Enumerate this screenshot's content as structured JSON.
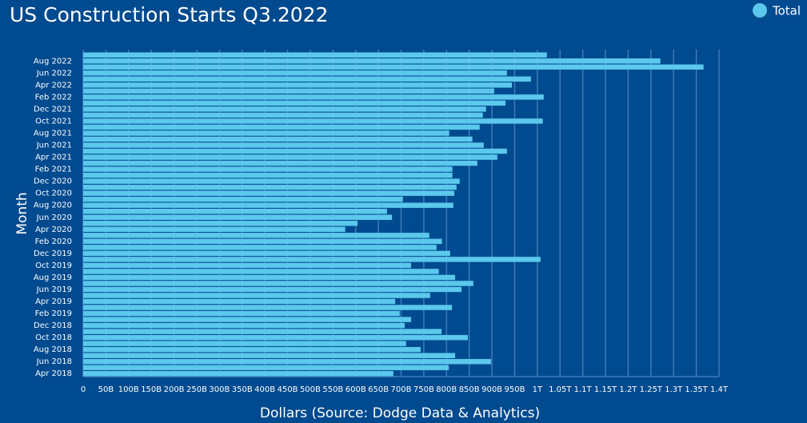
{
  "chart_data": {
    "type": "barh",
    "title": "US Construction Starts Q3.2022",
    "x_label": "Dollars (Source: Dodge Data & Analytics)",
    "y_label": "Month",
    "legend": "top-right",
    "grid": true,
    "categories": [
      "Apr 2018",
      null,
      "Jun 2018",
      null,
      "Aug 2018",
      null,
      "Oct 2018",
      null,
      "Dec 2018",
      null,
      "Feb 2019",
      null,
      "Apr 2019",
      null,
      "Jun 2019",
      null,
      "Aug 2019",
      null,
      "Oct 2019",
      null,
      "Dec 2019",
      null,
      "Feb 2020",
      null,
      "Apr 2020",
      null,
      "Jun 2020",
      null,
      "Aug 2020",
      null,
      "Oct 2020",
      null,
      "Dec 2020",
      null,
      "Feb 2021",
      null,
      "Apr 2021",
      null,
      "Jun 2021",
      null,
      "Aug 2021",
      null,
      "Oct 2021",
      null,
      "Dec 2021",
      null,
      "Feb 2022",
      null,
      "Apr 2022",
      null,
      "Jun 2022",
      null,
      "Aug 2022",
      null
    ],
    "series": [
      {
        "name": "Total",
        "color": "#5bc8ec",
        "values": [
          683000000000.0,
          805000000000.0,
          898000000000.0,
          819000000000.0,
          743000000000.0,
          711000000000.0,
          847000000000.0,
          789000000000.0,
          708000000000.0,
          722000000000.0,
          697000000000.0,
          812000000000.0,
          687000000000.0,
          764000000000.0,
          833000000000.0,
          859000000000.0,
          819000000000.0,
          783000000000.0,
          722000000000.0,
          1007000000000.0,
          808000000000.0,
          778000000000.0,
          790000000000.0,
          762000000000.0,
          577000000000.0,
          604000000000.0,
          680000000000.0,
          669000000000.0,
          815000000000.0,
          704000000000.0,
          817000000000.0,
          822000000000.0,
          829000000000.0,
          813000000000.0,
          813000000000.0,
          868000000000.0,
          912000000000.0,
          933000000000.0,
          882000000000.0,
          857000000000.0,
          806000000000.0,
          873000000000.0,
          1012000000000.0,
          880000000000.0,
          887000000000.0,
          930000000000.0,
          1014000000000.0,
          905000000000.0,
          944000000000.0,
          986000000000.0,
          933000000000.0,
          1366000000000.0,
          1271000000000.0,
          1021000000000.0
        ]
      }
    ],
    "xlim": [
      0,
      1400000000000.0
    ],
    "xticks": [
      0,
      {
        "value": 50000000000.0,
        "label": "50B"
      },
      {
        "value": 100000000000.0,
        "label": "100B"
      },
      {
        "value": 150000000000.0,
        "label": "150B"
      },
      {
        "value": 200000000000.0,
        "label": "200B"
      },
      {
        "value": 250000000000.0,
        "label": "250B"
      },
      {
        "value": 300000000000.0,
        "label": "300B"
      },
      {
        "value": 350000000000.0,
        "label": "350B"
      },
      {
        "value": 400000000000.0,
        "label": "400B"
      },
      {
        "value": 450000000000.0,
        "label": "450B"
      },
      {
        "value": 500000000000.0,
        "label": "500B"
      },
      {
        "value": 550000000000.0,
        "label": "550B"
      },
      {
        "value": 600000000000.0,
        "label": "600B"
      },
      {
        "value": 650000000000.0,
        "label": "650B"
      },
      {
        "value": 700000000000.0,
        "label": "700B"
      },
      {
        "value": 750000000000.0,
        "label": "750B"
      },
      {
        "value": 800000000000.0,
        "label": "800B"
      },
      {
        "value": 850000000000.0,
        "label": "850B"
      },
      {
        "value": 900000000000.0,
        "label": "900B"
      },
      {
        "value": 950000000000.0,
        "label": "950B"
      },
      {
        "value": 1000000000000.0,
        "label": "1T"
      },
      {
        "value": 1050000000000.0,
        "label": "1.05T"
      },
      {
        "value": 1100000000000.0,
        "label": "1.1T"
      },
      {
        "value": 1150000000000.0,
        "label": "1.15T"
      },
      {
        "value": 1200000000000.0,
        "label": "1.2T"
      },
      {
        "value": 1250000000000.0,
        "label": "1.25T"
      },
      {
        "value": 1300000000000.0,
        "label": "1.3T"
      },
      {
        "value": 1350000000000.0,
        "label": "1.35T"
      },
      {
        "value": 1400000000000.0,
        "label": "1.4T"
      }
    ]
  }
}
